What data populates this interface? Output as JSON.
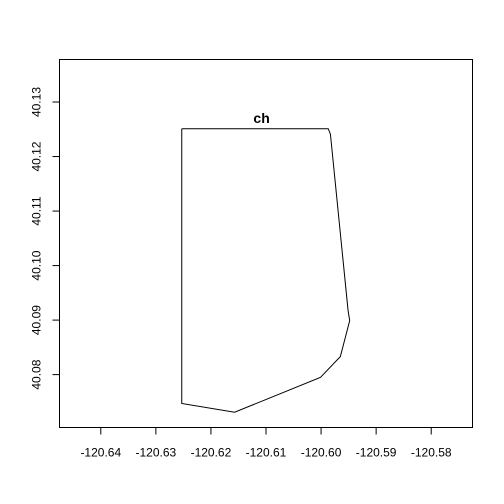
{
  "chart_data": {
    "type": "line",
    "title": "",
    "xlabel": "",
    "ylabel": "",
    "xlim": [
      -120.6475,
      -120.5725
    ],
    "ylim": [
      40.0703,
      40.1378
    ],
    "grid": false,
    "x_ticks": [
      -120.64,
      -120.63,
      -120.62,
      -120.61,
      -120.6,
      -120.59,
      -120.58
    ],
    "x_tick_labels": [
      "-120.64",
      "-120.63",
      "-120.62",
      "-120.61",
      "-120.60",
      "-120.59",
      "-120.58"
    ],
    "y_ticks": [
      40.08,
      40.09,
      40.1,
      40.11,
      40.12,
      40.13
    ],
    "y_tick_labels": [
      "40.08",
      "40.09",
      "40.10",
      "40.11",
      "40.12",
      "40.13"
    ],
    "series": [
      {
        "x": [
          -120.6253,
          -120.5987,
          -120.5983,
          -120.5951,
          -120.5948,
          -120.5965,
          -120.6001,
          -120.6157,
          -120.6253,
          -120.6253
        ],
        "y": [
          40.1251,
          40.1251,
          40.1241,
          40.0918,
          40.0899,
          40.0833,
          40.0795,
          40.0731,
          40.0747,
          40.1251
        ],
        "color": "#000000"
      }
    ],
    "annotations": [
      {
        "text": "ch",
        "x": -120.6108,
        "y": 40.1271
      }
    ]
  }
}
